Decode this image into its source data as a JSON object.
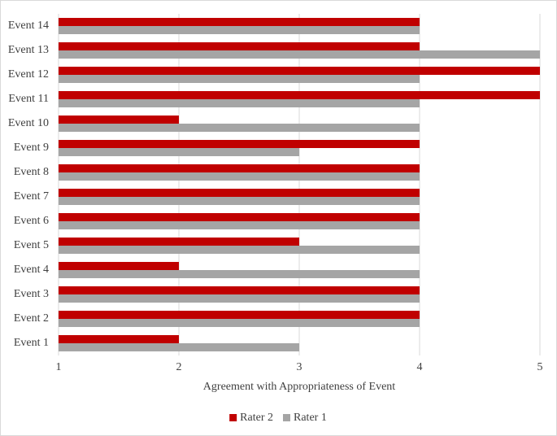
{
  "chart_data": {
    "type": "hbar",
    "categories": [
      "Event 1",
      "Event 2",
      "Event 3",
      "Event 4",
      "Event 5",
      "Event 6",
      "Event 7",
      "Event 8",
      "Event 9",
      "Event 10",
      "Event 11",
      "Event 12",
      "Event 13",
      "Event 14"
    ],
    "series": [
      {
        "name": "Rater 2",
        "color": "#c00000",
        "values": [
          2,
          4,
          4,
          2,
          3,
          4,
          4,
          4,
          4,
          2,
          5,
          5,
          4,
          4
        ]
      },
      {
        "name": "Rater 1",
        "color": "#a5a5a5",
        "values": [
          3,
          4,
          4,
          4,
          4,
          4,
          4,
          4,
          3,
          4,
          4,
          4,
          5,
          4
        ]
      }
    ],
    "x_label": "Agreement with Appropriateness of Event",
    "xlim": [
      1,
      5
    ],
    "xticks": [
      1,
      2,
      3,
      4,
      5
    ],
    "grid": true,
    "legend": "bottom"
  }
}
